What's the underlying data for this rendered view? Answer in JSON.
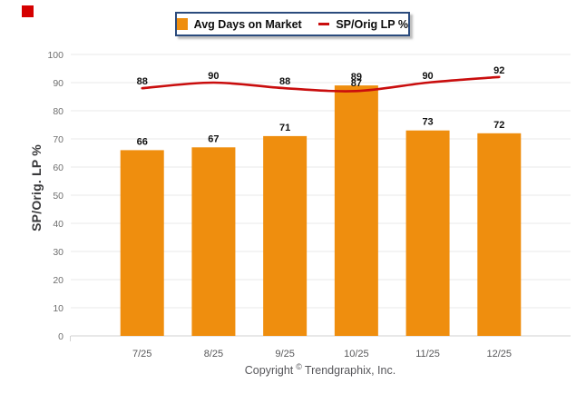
{
  "marker": {
    "color": "#D50000"
  },
  "legend": {
    "border_color": "#2B4B7D",
    "items": [
      {
        "label": "Avg Days on Market",
        "swatch": "bar",
        "color": "#EF8E0E"
      },
      {
        "label": "SP/Orig LP %",
        "swatch": "line",
        "color": "#C90D0D"
      }
    ]
  },
  "chart_data": {
    "type": "bar+line",
    "categories": [
      "7/25",
      "8/25",
      "9/25",
      "10/25",
      "11/25",
      "12/25"
    ],
    "series": [
      {
        "name": "Avg Days on Market",
        "type": "bar",
        "color": "#EF8E0E",
        "values": [
          66,
          67,
          71,
          89,
          73,
          72
        ]
      },
      {
        "name": "SP/Orig LP %",
        "type": "line",
        "color": "#C90D0D",
        "values": [
          88,
          90,
          88,
          87,
          90,
          92
        ]
      }
    ],
    "title": "",
    "xlabel": "",
    "ylabel": "SP/Orig. LP %",
    "ylim": [
      0,
      100
    ],
    "yticks": [
      0,
      10,
      20,
      30,
      40,
      50,
      60,
      70,
      80,
      90,
      100
    ],
    "grid": true,
    "legend_position": "top-center",
    "colors": {
      "grid_line": "#E9E9E9",
      "baseline": "#D2D2D2",
      "tick_label": "#6E6E6E",
      "x_label": "#58585A",
      "value_label": "#111111"
    }
  },
  "footer": {
    "copyright_prefix": "Copyright",
    "copyright_symbol": "©",
    "copyright_suffix": "Trendgraphix, Inc."
  }
}
